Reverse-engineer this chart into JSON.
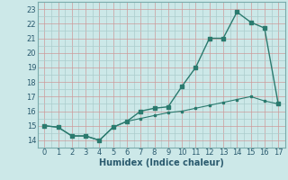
{
  "xlabel": "Humidex (Indice chaleur)",
  "x": [
    0,
    1,
    2,
    3,
    4,
    5,
    6,
    7,
    8,
    9,
    10,
    11,
    12,
    13,
    14,
    15,
    16,
    17
  ],
  "y_upper": [
    15.0,
    14.9,
    14.3,
    14.3,
    14.0,
    14.9,
    15.3,
    16.0,
    16.2,
    16.3,
    17.7,
    19.0,
    21.0,
    21.0,
    22.8,
    22.1,
    21.7,
    16.5
  ],
  "y_lower": [
    15.0,
    14.9,
    14.3,
    14.3,
    14.0,
    14.9,
    15.3,
    15.5,
    15.7,
    15.9,
    16.0,
    16.2,
    16.4,
    16.6,
    16.8,
    17.0,
    16.7,
    16.5
  ],
  "line_color": "#2a7a6e",
  "bg_color": "#cce8e8",
  "grid_color_minor": "#aacccc",
  "grid_color_major": "#cc9999",
  "ylim": [
    13.5,
    23.5
  ],
  "xlim": [
    -0.5,
    17.5
  ],
  "yticks": [
    14,
    15,
    16,
    17,
    18,
    19,
    20,
    21,
    22,
    23
  ],
  "xticks": [
    0,
    1,
    2,
    3,
    4,
    5,
    6,
    7,
    8,
    9,
    10,
    11,
    12,
    13,
    14,
    15,
    16,
    17
  ],
  "xlabel_fontsize": 7,
  "xlabel_color": "#2a5a6e",
  "tick_fontsize": 6,
  "tick_color": "#2a5a6e"
}
